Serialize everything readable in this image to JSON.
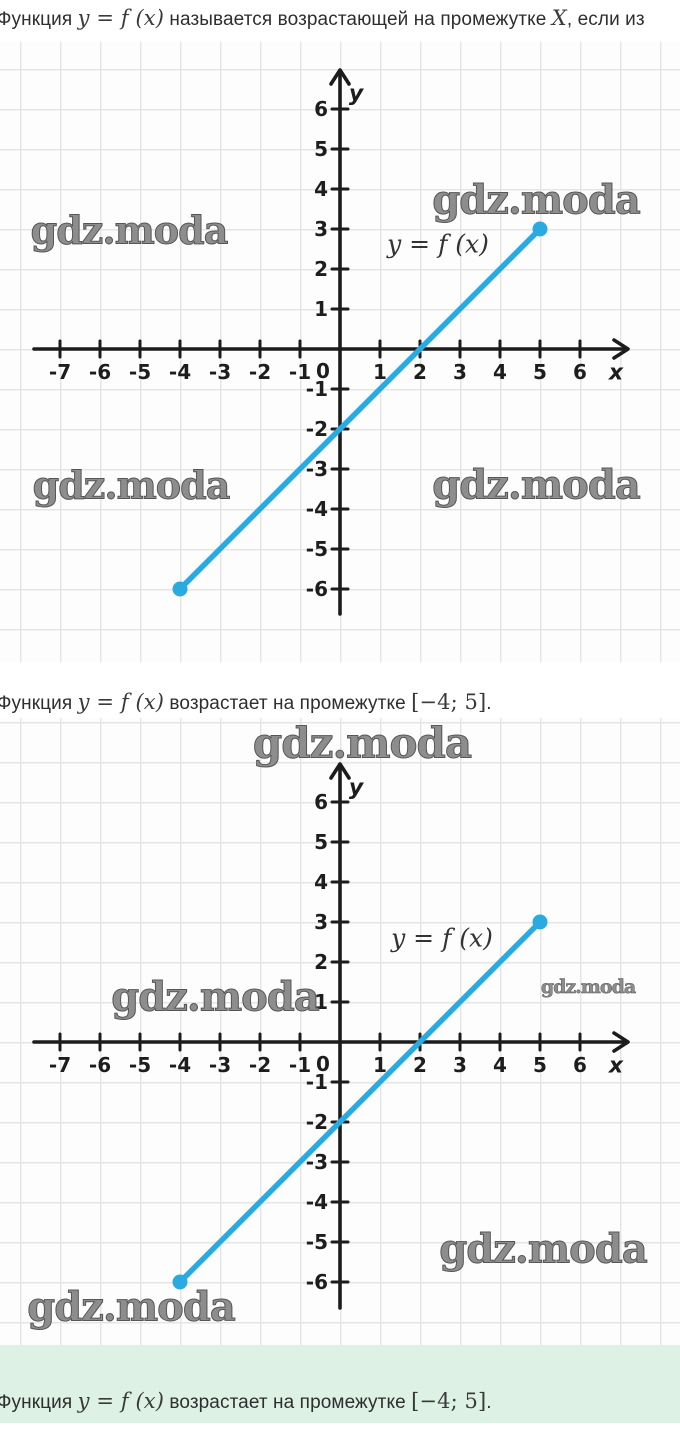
{
  "watermark": {
    "text": "gdz.moda",
    "color": "#8d8d8d"
  },
  "colors": {
    "axis": "#1c1c1c",
    "grid": "#e5e5e5",
    "line": "#29abe2",
    "band": "#ddf2e4"
  },
  "texts": {
    "top": {
      "pre": "Функция ",
      "math1": "y = f (x)",
      "mid": " называется возрастающей на промежутке ",
      "math2": "X",
      "post": ", если из"
    },
    "middle": {
      "pre": "Функция ",
      "math1": "y = f (x)",
      "mid": " возрастает на промежутке ",
      "interval": "[−4;  5]",
      "post": "."
    },
    "bottom": {
      "pre": "Функция ",
      "math1": "y = f (x)",
      "mid": " возрастает на промежутке ",
      "interval": "[−4;  5]",
      "post": "."
    }
  },
  "chart_data": [
    {
      "type": "line",
      "title": "",
      "xlabel": "x",
      "ylabel": "y",
      "origin_label": "0",
      "x_ticks": [
        -7,
        -6,
        -5,
        -4,
        -3,
        -2,
        -1,
        1,
        2,
        3,
        4,
        5,
        6
      ],
      "y_ticks": [
        6,
        5,
        4,
        3,
        2,
        1,
        -1,
        -2,
        -3,
        -4,
        -5,
        -6
      ],
      "xlim": [
        -7.6,
        7.2
      ],
      "ylim": [
        -6.9,
        6.9
      ],
      "grid": true,
      "legend": "none",
      "curve_label": "y = f (x)",
      "series": [
        {
          "name": "y = f(x)",
          "points": [
            [
              -4,
              -6
            ],
            [
              5,
              3
            ]
          ],
          "color": "#29abe2",
          "endpoint_markers": true
        }
      ]
    },
    {
      "type": "line",
      "title": "",
      "xlabel": "x",
      "ylabel": "y",
      "origin_label": "0",
      "x_ticks": [
        -7,
        -6,
        -5,
        -4,
        -3,
        -2,
        -1,
        1,
        2,
        3,
        4,
        5,
        6
      ],
      "y_ticks": [
        6,
        5,
        4,
        3,
        2,
        1,
        -1,
        -2,
        -3,
        -4,
        -5,
        -6
      ],
      "xlim": [
        -7.6,
        7.2
      ],
      "ylim": [
        -6.9,
        6.9
      ],
      "grid": true,
      "legend": "none",
      "curve_label": "y = f (x)",
      "series": [
        {
          "name": "y = f(x)",
          "points": [
            [
              -4,
              -6
            ],
            [
              5,
              3
            ]
          ],
          "color": "#29abe2",
          "endpoint_markers": true
        }
      ]
    }
  ]
}
